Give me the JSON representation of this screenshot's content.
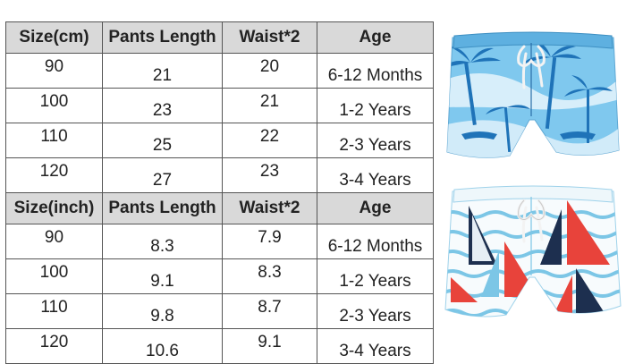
{
  "cm_table": {
    "headers": [
      "Size(cm)",
      "Pants Length",
      "Waist*2",
      "Age"
    ],
    "rows": [
      [
        "90",
        "21",
        "20",
        "6-12 Months"
      ],
      [
        "100",
        "23",
        "21",
        "1-2 Years"
      ],
      [
        "110",
        "25",
        "22",
        "2-3 Years"
      ],
      [
        "120",
        "27",
        "23",
        "3-4 Years"
      ]
    ]
  },
  "inch_table": {
    "headers": [
      "Size(inch)",
      "Pants Length",
      "Waist*2",
      "Age"
    ],
    "rows": [
      [
        "90",
        "8.3",
        "7.9",
        "6-12 Months"
      ],
      [
        "100",
        "9.1",
        "8.3",
        "1-2 Years"
      ],
      [
        "110",
        "9.8",
        "8.7",
        "2-3 Years"
      ],
      [
        "120",
        "10.6",
        "9.1",
        "3-4 Years"
      ]
    ]
  },
  "products": [
    {
      "name": "palm-tree-shorts-image",
      "colors": {
        "base": "#7fc8ee",
        "print": "#1f73b8",
        "light": "#e6f4fb",
        "string": "#f3f3f3"
      }
    },
    {
      "name": "sailboat-shorts-image",
      "colors": {
        "base": "#f7fbfd",
        "stripe": "#7cc6e6",
        "sail_red": "#e8433b",
        "sail_navy": "#1d2f4f",
        "string": "#f3f3f3"
      }
    }
  ]
}
